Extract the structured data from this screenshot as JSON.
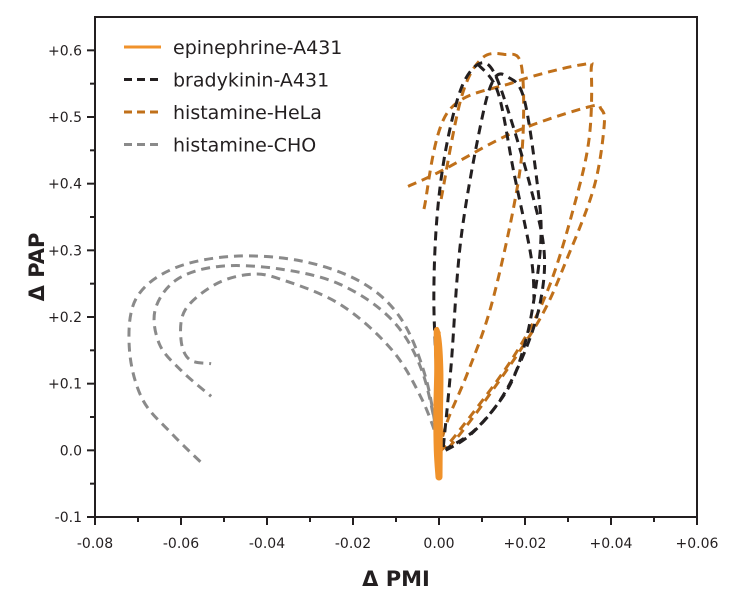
{
  "chart_data": {
    "type": "line",
    "title": "",
    "xlabel": "Δ PMI",
    "ylabel": "Δ PAP",
    "xlim": [
      -0.08,
      0.06
    ],
    "ylim": [
      -0.1,
      0.65
    ],
    "grid": false,
    "legend_position": "top-left",
    "x_ticks": [
      -0.08,
      -0.06,
      -0.04,
      -0.02,
      0.0,
      0.02,
      0.04,
      0.06
    ],
    "x_tick_labels": [
      "-0.08",
      "-0.06",
      "-0.04",
      "-0.02",
      "0.00",
      "+0.02",
      "+0.04",
      "+0.06"
    ],
    "y_ticks": [
      -0.1,
      0.0,
      0.1,
      0.2,
      0.3,
      0.4,
      0.5,
      0.6
    ],
    "y_tick_labels": [
      "-0.1",
      "0.0",
      "+0.1",
      "+0.2",
      "+0.3",
      "+0.4",
      "+0.5",
      "+0.6"
    ],
    "series": [
      {
        "name": "epinephrine-A431",
        "color": "#f0922b",
        "style": "solid",
        "traces": [
          [
            [
              0.0,
              -0.04
            ],
            [
              -0.0004,
              0.0
            ],
            [
              -0.0005,
              0.06
            ],
            [
              -0.0003,
              0.12
            ],
            [
              -0.0004,
              0.18
            ],
            [
              0.0002,
              0.12
            ],
            [
              0.0001,
              0.05
            ],
            [
              0.0,
              -0.04
            ]
          ]
        ]
      },
      {
        "name": "bradykinin-A431",
        "color": "#231f20",
        "style": "dashed",
        "traces": [
          [
            [
              0,
              0
            ],
            [
              -0.0005,
              0.107
            ],
            [
              -0.0012,
              0.227
            ],
            [
              -0.0005,
              0.347
            ],
            [
              0.0016,
              0.452
            ],
            [
              0.0051,
              0.542
            ],
            [
              0.0091,
              0.579
            ],
            [
              0.0126,
              0.569
            ],
            [
              0.0167,
              0.497
            ],
            [
              0.0214,
              0.392
            ],
            [
              0.0244,
              0.302
            ],
            [
              0.0237,
              0.227
            ],
            [
              0.0202,
              0.152
            ],
            [
              0.0144,
              0.077
            ],
            [
              0.0074,
              0.024
            ],
            [
              0.001,
              -0.002
            ]
          ],
          [
            [
              0.001,
              0.005
            ],
            [
              0.0028,
              0.126
            ],
            [
              0.0051,
              0.317
            ],
            [
              0.0098,
              0.492
            ],
            [
              0.0128,
              0.557
            ],
            [
              0.016,
              0.56
            ],
            [
              0.0198,
              0.527
            ],
            [
              0.023,
              0.392
            ],
            [
              0.0237,
              0.317
            ],
            [
              0.0221,
              0.227
            ],
            [
              0.0198,
              0.156
            ],
            [
              0.016,
              0.092
            ],
            [
              0.0086,
              0.032
            ],
            [
              0.0016,
              0.002
            ]
          ],
          [
            [
              0.0091,
              0.579
            ],
            [
              0.0137,
              0.537
            ],
            [
              0.0174,
              0.417
            ],
            [
              0.0214,
              0.291
            ],
            [
              0.0221,
              0.227
            ]
          ]
        ]
      },
      {
        "name": "histamine-HeLa",
        "color": "#c0701a",
        "style": "dashed",
        "traces": [
          [
            [
              -0.0072,
              0.396
            ],
            [
              0.0005,
              0.419
            ],
            [
              0.0174,
              0.477
            ],
            [
              0.0347,
              0.515
            ],
            [
              0.0377,
              0.512
            ],
            [
              0.0384,
              0.486
            ],
            [
              0.0361,
              0.396
            ],
            [
              0.03,
              0.291
            ],
            [
              0.023,
              0.192
            ],
            [
              0.0098,
              0.066
            ],
            [
              0.002,
              0.0015
            ]
          ],
          [
            [
              -0.0035,
              0.362
            ],
            [
              0.002,
              0.507
            ],
            [
              0.0174,
              0.552
            ],
            [
              0.0337,
              0.579
            ],
            [
              0.0354,
              0.567
            ],
            [
              0.0349,
              0.467
            ],
            [
              0.0314,
              0.366
            ],
            [
              0.0254,
              0.242
            ],
            [
              0.0174,
              0.141
            ],
            [
              0.0044,
              0.027
            ],
            [
              0.0005,
              0.0
            ]
          ],
          [
            [
              0.0005,
              0.377
            ],
            [
              0.0051,
              0.527
            ],
            [
              0.0098,
              0.587
            ],
            [
              0.0151,
              0.594
            ],
            [
              0.0191,
              0.579
            ],
            [
              0.0195,
              0.467
            ],
            [
              0.0174,
              0.366
            ],
            [
              0.0121,
              0.216
            ],
            [
              0.0067,
              0.117
            ],
            [
              0.0021,
              0.0465
            ],
            [
              0,
              0
            ]
          ]
        ]
      },
      {
        "name": "histamine-CHO",
        "color": "#8a8a8a",
        "style": "dashed",
        "traces": [
          [
            [
              0,
              0
            ],
            [
              -0.003,
              0.107
            ],
            [
              -0.0088,
              0.197
            ],
            [
              -0.018,
              0.252
            ],
            [
              -0.032,
              0.284
            ],
            [
              -0.048,
              0.291
            ],
            [
              -0.062,
              0.272
            ],
            [
              -0.0705,
              0.227
            ],
            [
              -0.072,
              0.152
            ],
            [
              -0.069,
              0.077
            ],
            [
              -0.062,
              0.024
            ],
            [
              -0.0547,
              -0.022
            ]
          ],
          [
            [
              0,
              0.01
            ],
            [
              -0.004,
              0.12
            ],
            [
              -0.011,
              0.196
            ],
            [
              -0.023,
              0.249
            ],
            [
              -0.037,
              0.272
            ],
            [
              -0.051,
              0.276
            ],
            [
              -0.061,
              0.256
            ],
            [
              -0.066,
              0.211
            ],
            [
              -0.065,
              0.159
            ],
            [
              -0.06,
              0.12
            ],
            [
              -0.053,
              0.081
            ]
          ],
          [
            [
              0,
              0.01
            ],
            [
              -0.004,
              0.077
            ],
            [
              -0.011,
              0.151
            ],
            [
              -0.023,
              0.219
            ],
            [
              -0.037,
              0.257
            ],
            [
              -0.044,
              0.264
            ],
            [
              -0.052,
              0.249
            ],
            [
              -0.059,
              0.211
            ],
            [
              -0.06,
              0.166
            ],
            [
              -0.058,
              0.136
            ],
            [
              -0.053,
              0.13
            ]
          ]
        ]
      }
    ]
  }
}
